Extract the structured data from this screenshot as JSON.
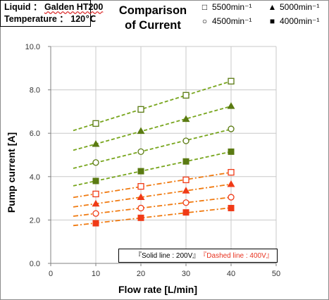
{
  "conditions": {
    "liquid_label": "Liquid ：",
    "liquid_value": "Galden HT200",
    "temperature_label": "Temperature ：",
    "temperature_value": "120℃"
  },
  "chart_data": {
    "type": "line",
    "title": "Comparison of Current",
    "title_lines": [
      "Comparison",
      "of Current"
    ],
    "xlabel": "Flow rate [L/min]",
    "ylabel": "Pump current [A]",
    "xlim": [
      0,
      50
    ],
    "ylim": [
      0.0,
      10.0
    ],
    "x_ticks": [
      0,
      10,
      20,
      30,
      40,
      50
    ],
    "x_tick_labels": [
      "0",
      "10",
      "20",
      "30",
      "40",
      "50"
    ],
    "y_ticks": [
      0,
      2,
      4,
      6,
      8,
      10
    ],
    "y_tick_labels": [
      "0.0",
      "2.0",
      "4.0",
      "6.0",
      "8.0",
      "10.0"
    ],
    "grid": true,
    "legend_position": "top-right",
    "x": [
      10,
      20,
      30,
      40
    ],
    "trend_x_range": [
      5,
      40
    ],
    "series": [
      {
        "name": "5500min⁻¹",
        "voltage": "200V",
        "marker": "square-open",
        "values": [
          6.45,
          7.1,
          7.75,
          8.4
        ]
      },
      {
        "name": "5000min⁻¹",
        "voltage": "200V",
        "marker": "triangle-filled",
        "values": [
          5.5,
          6.1,
          6.65,
          7.25
        ]
      },
      {
        "name": "4500min⁻¹",
        "voltage": "200V",
        "marker": "circle-open",
        "values": [
          4.65,
          5.15,
          5.65,
          6.2
        ]
      },
      {
        "name": "4000min⁻¹",
        "voltage": "200V",
        "marker": "square-filled",
        "values": [
          3.8,
          4.25,
          4.7,
          5.15
        ]
      },
      {
        "name": "5500min⁻¹",
        "voltage": "400V",
        "marker": "square-open",
        "values": [
          3.2,
          3.55,
          3.85,
          4.2
        ]
      },
      {
        "name": "5000min⁻¹",
        "voltage": "400V",
        "marker": "triangle-filled",
        "values": [
          2.75,
          3.05,
          3.35,
          3.65
        ]
      },
      {
        "name": "4500min⁻¹",
        "voltage": "400V",
        "marker": "circle-open",
        "values": [
          2.3,
          2.55,
          2.8,
          3.05
        ]
      },
      {
        "name": "4000min⁻¹",
        "voltage": "400V",
        "marker": "square-filled",
        "values": [
          1.85,
          2.1,
          2.35,
          2.55
        ]
      }
    ],
    "legend": [
      {
        "label": "5500min⁻¹",
        "marker": "□"
      },
      {
        "label": "5000min⁻¹",
        "marker": "▲"
      },
      {
        "label": "4500min⁻¹",
        "marker": "○"
      },
      {
        "label": "4000min⁻¹",
        "marker": "■"
      }
    ],
    "line_legend": {
      "solid": "『Solid line : 200V』",
      "dashed": "『Dashed line : 400V』"
    }
  },
  "colors": {
    "olive_200V": "#5a7a12",
    "olive_trend": "#77a51c",
    "red_400V": "#f03a17",
    "orange_trend": "#f07a10",
    "grid": "#c8c8c8",
    "axis": "#808080"
  }
}
